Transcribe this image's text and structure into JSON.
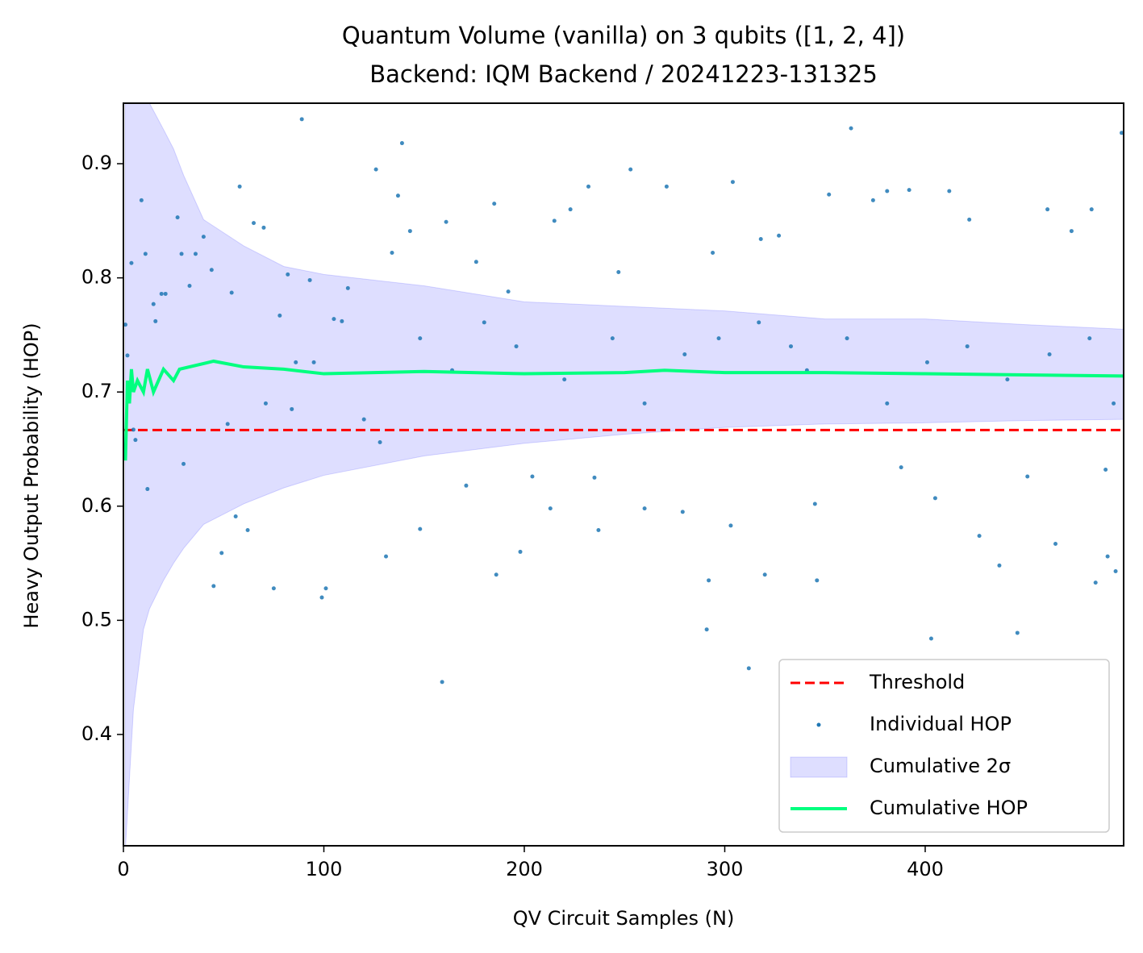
{
  "chart_data": {
    "type": "line",
    "title": "Quantum Volume (vanilla) on 3 qubits ([1, 2, 4])",
    "subtitle": "Backend: IQM Backend / 20241223-131325",
    "x_label": "QV Circuit Samples (N)",
    "y_label": "Heavy Output Probability (HOP)",
    "xlim": [
      0,
      499
    ],
    "xticks": [
      0,
      100,
      200,
      300,
      400
    ],
    "ylim": [
      0.3025,
      0.953
    ],
    "yticks": [
      0.4,
      0.5,
      0.6,
      0.7,
      0.8,
      0.9
    ],
    "legend": "lower right",
    "series": [
      {
        "name": "Threshold",
        "kind": "hline",
        "color": "#ff0000",
        "value": 0.6667
      },
      {
        "name": "Individual HOP",
        "kind": "scatter",
        "color": "#1f77b4",
        "x": [
          1,
          2,
          4,
          5,
          6,
          9,
          11,
          12,
          15,
          16,
          19,
          21,
          27,
          29,
          30,
          33,
          36,
          40,
          44,
          45,
          49,
          52,
          54,
          56,
          58,
          62,
          65,
          70,
          71,
          75,
          78,
          82,
          84,
          86,
          89,
          93,
          95,
          99,
          101,
          105,
          109,
          112,
          120,
          126,
          128,
          131,
          134,
          137,
          139,
          143,
          148,
          148,
          159,
          161,
          164,
          171,
          176,
          180,
          185,
          186,
          192,
          196,
          198,
          204,
          213,
          215,
          220,
          223,
          232,
          235,
          237,
          244,
          247,
          253,
          260,
          260,
          271,
          279,
          280,
          291,
          292,
          294,
          297,
          303,
          304,
          312,
          317,
          318,
          320,
          327,
          333,
          341,
          345,
          346,
          352,
          361,
          363,
          374,
          381,
          381,
          388,
          392,
          401,
          403,
          405,
          412,
          421,
          422,
          427,
          437,
          441,
          446,
          451,
          461,
          462,
          465,
          473,
          482,
          483,
          485,
          490,
          491,
          494,
          495,
          498
        ],
        "values": [
          0.759,
          0.732,
          0.813,
          0.667,
          0.658,
          0.868,
          0.821,
          0.615,
          0.777,
          0.762,
          0.786,
          0.786,
          0.853,
          0.821,
          0.637,
          0.793,
          0.821,
          0.836,
          0.807,
          0.53,
          0.559,
          0.672,
          0.787,
          0.591,
          0.88,
          0.579,
          0.848,
          0.844,
          0.69,
          0.528,
          0.767,
          0.803,
          0.685,
          0.726,
          0.939,
          0.798,
          0.726,
          0.52,
          0.528,
          0.764,
          0.762,
          0.791,
          0.676,
          0.895,
          0.656,
          0.556,
          0.822,
          0.872,
          0.918,
          0.841,
          0.58,
          0.747,
          0.446,
          0.849,
          0.719,
          0.618,
          0.814,
          0.761,
          0.865,
          0.54,
          0.788,
          0.74,
          0.56,
          0.626,
          0.598,
          0.85,
          0.711,
          0.86,
          0.88,
          0.625,
          0.579,
          0.747,
          0.805,
          0.895,
          0.598,
          0.69,
          0.88,
          0.595,
          0.733,
          0.492,
          0.535,
          0.822,
          0.747,
          0.583,
          0.884,
          0.458,
          0.761,
          0.834,
          0.54,
          0.837,
          0.74,
          0.719,
          0.602,
          0.535,
          0.873,
          0.747,
          0.931,
          0.868,
          0.876,
          0.69,
          0.634,
          0.877,
          0.726,
          0.484,
          0.607,
          0.876,
          0.74,
          0.851,
          0.574,
          0.548,
          0.711,
          0.489,
          0.626,
          0.86,
          0.733,
          0.567,
          0.841,
          0.747,
          0.86,
          0.533,
          0.632,
          0.556,
          0.69,
          0.543,
          0.927
        ]
      },
      {
        "name": "Cumulative 2σ",
        "kind": "band",
        "color": "#0000ff",
        "x": [
          1,
          5,
          10,
          13,
          20,
          25,
          30,
          40,
          60,
          80,
          100,
          150,
          200,
          250,
          300,
          350,
          400,
          450,
          499
        ],
        "lower": [
          0.3,
          0.422,
          0.492,
          0.51,
          0.535,
          0.55,
          0.563,
          0.584,
          0.602,
          0.616,
          0.627,
          0.644,
          0.655,
          0.663,
          0.669,
          0.672,
          0.673,
          0.675,
          0.676
        ],
        "upper": [
          1.2,
          1.02,
          0.97,
          0.953,
          0.93,
          0.913,
          0.89,
          0.851,
          0.828,
          0.81,
          0.803,
          0.793,
          0.779,
          0.775,
          0.771,
          0.764,
          0.764,
          0.759,
          0.755
        ]
      },
      {
        "name": "Cumulative HOP",
        "kind": "line",
        "color": "#00ff7f",
        "x": [
          1,
          2,
          3,
          4,
          5,
          7,
          10,
          12,
          15,
          20,
          25,
          28,
          45,
          60,
          80,
          100,
          150,
          200,
          250,
          270,
          300,
          350,
          400,
          450,
          499
        ],
        "values": [
          0.64,
          0.71,
          0.69,
          0.72,
          0.7,
          0.71,
          0.7,
          0.72,
          0.7,
          0.72,
          0.71,
          0.72,
          0.727,
          0.722,
          0.72,
          0.716,
          0.718,
          0.716,
          0.717,
          0.719,
          0.717,
          0.717,
          0.716,
          0.715,
          0.714
        ]
      }
    ]
  }
}
